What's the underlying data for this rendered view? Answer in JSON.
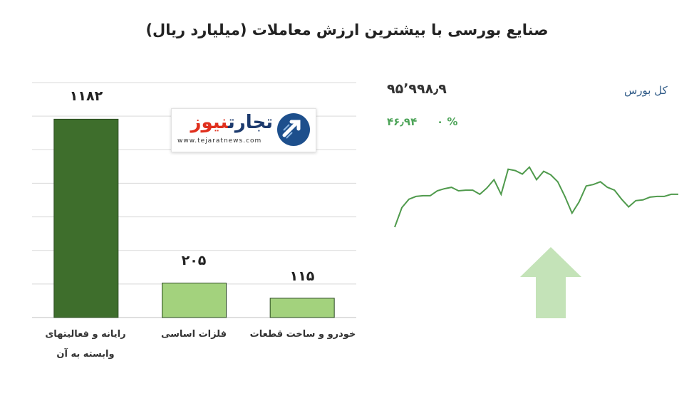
{
  "title": "صنایع بورسی با بیشترین ارزش معاملات  (میلیارد ریال)",
  "colors": {
    "bar_dark": "#3e6e2c",
    "bar_light": "#a3d27d",
    "line": "#4f9a4c",
    "arrow": "#c4e3b8",
    "grid": "#d9d9d9"
  },
  "chart_data": {
    "type": "bar",
    "categories": [
      "رایانه و فعالیتهای وابسته به آن",
      "فلزات اساسی",
      "خودرو و ساخت قطعات"
    ],
    "values": [
      1182,
      205,
      115
    ],
    "value_labels": [
      "۱۱۸۲",
      "۲۰۵",
      "۱۱۵"
    ],
    "ylim": [
      0,
      1400
    ],
    "grid": true,
    "title": "صنایع بورسی با بیشترین ارزش معاملات  (میلیارد ریال)"
  },
  "logo": {
    "text_red": "نیوز",
    "text_dark": "تجارت",
    "url": "www.tejaratnews.com"
  },
  "index_widget": {
    "title": "کل بورس",
    "value": "۹۵٬۹۹۸٫۹",
    "change": "۴۶٫۹۴",
    "change_pct": "۰ %",
    "direction": "up",
    "arrow_icon": "up-arrow-icon",
    "spark": [
      0.0,
      0.28,
      0.4,
      0.44,
      0.45,
      0.45,
      0.52,
      0.55,
      0.57,
      0.52,
      0.53,
      0.53,
      0.47,
      0.56,
      0.68,
      0.47,
      0.83,
      0.81,
      0.76,
      0.86,
      0.68,
      0.8,
      0.75,
      0.65,
      0.44,
      0.2,
      0.36,
      0.59,
      0.61,
      0.65,
      0.57,
      0.53,
      0.4,
      0.29,
      0.38,
      0.39,
      0.43,
      0.44,
      0.44,
      0.47,
      0.47
    ]
  }
}
